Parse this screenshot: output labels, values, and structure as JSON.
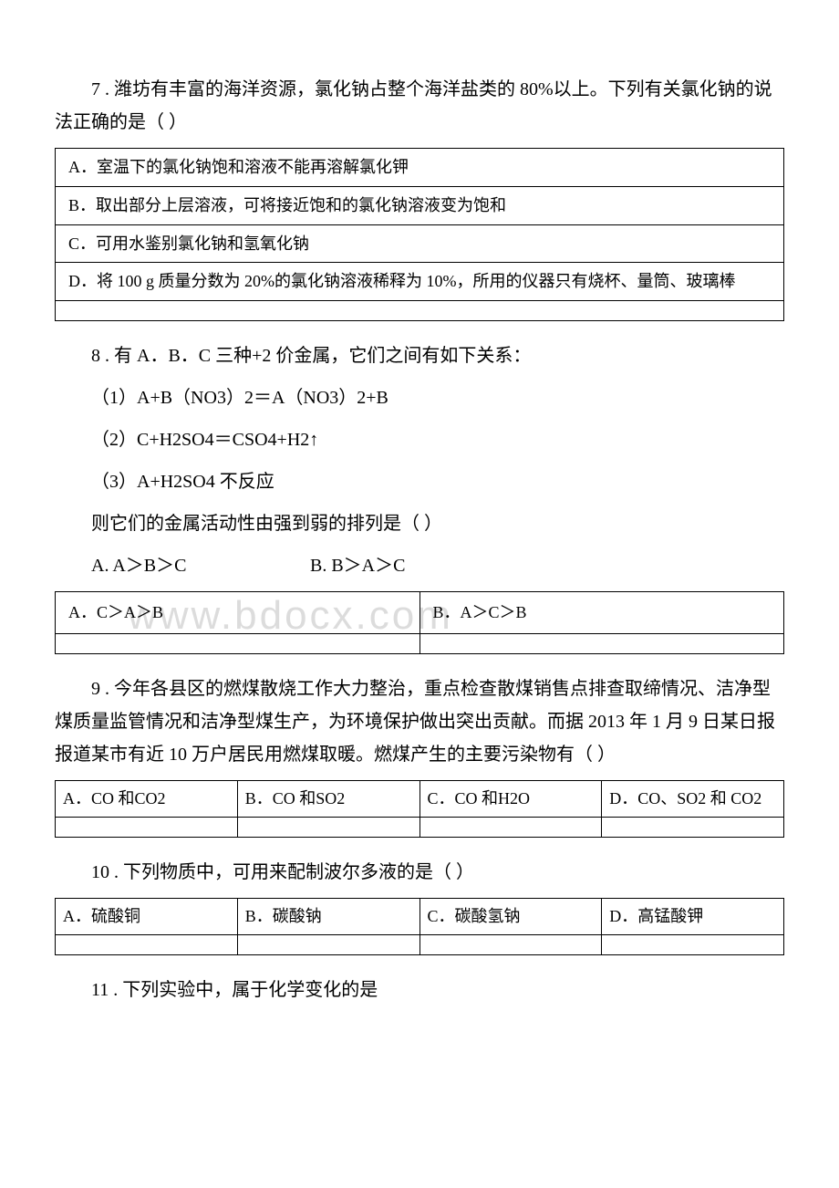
{
  "watermark": "www.bdocx.com",
  "q7": {
    "text": "7 . 潍坊有丰富的海洋资源，氯化钠占整个海洋盐类的 80%以上。下列有关氯化钠的说法正确的是（ ）",
    "opts": [
      "A．室温下的氯化钠饱和溶液不能再溶解氯化钾",
      "B．取出部分上层溶液，可将接近饱和的氯化钠溶液变为饱和",
      "C．可用水鉴别氯化钠和氢氧化钠",
      "D．将 100 g 质量分数为 20%的氯化钠溶液稀释为 10%，所用的仪器只有烧杯、量筒、玻璃棒"
    ]
  },
  "q8": {
    "text": "8 . 有 A．B．C 三种+2 价金属，它们之间有如下关系：",
    "l1": "（1）A+B（NO3）2＝A（NO3）2+B",
    "l2": "（2）C+H2SO4＝CSO4+H2↑",
    "l3": "（3）A+H2SO4 不反应",
    "l4": "则它们的金属活动性由强到弱的排列是（ ）",
    "inA": "A. A＞B＞C",
    "inB": "B. B＞A＞C",
    "tA": "A．C＞A＞B",
    "tB": "B．A＞C＞B"
  },
  "q9": {
    "text": "9 . 今年各县区的燃煤散烧工作大力整治，重点检查散煤销售点排查取缔情况、洁净型煤质量监管情况和洁净型煤生产，为环境保护做出突出贡献。而据 2013 年 1 月 9 日某日报报道某市有近 10 万户居民用燃煤取暖。燃煤产生的主要污染物有（ ）",
    "opts": [
      "A．CO 和CO2",
      "B．CO 和SO2",
      "C．CO 和H2O",
      "D．CO、SO2 和 CO2"
    ]
  },
  "q10": {
    "text": "10 . 下列物质中，可用来配制波尔多液的是（ ）",
    "opts": [
      "A．硫酸铜",
      "B．碳酸钠",
      "C．碳酸氢钠",
      "D．高锰酸钾"
    ]
  },
  "q11": {
    "text": "11 . 下列实验中，属于化学变化的是"
  }
}
